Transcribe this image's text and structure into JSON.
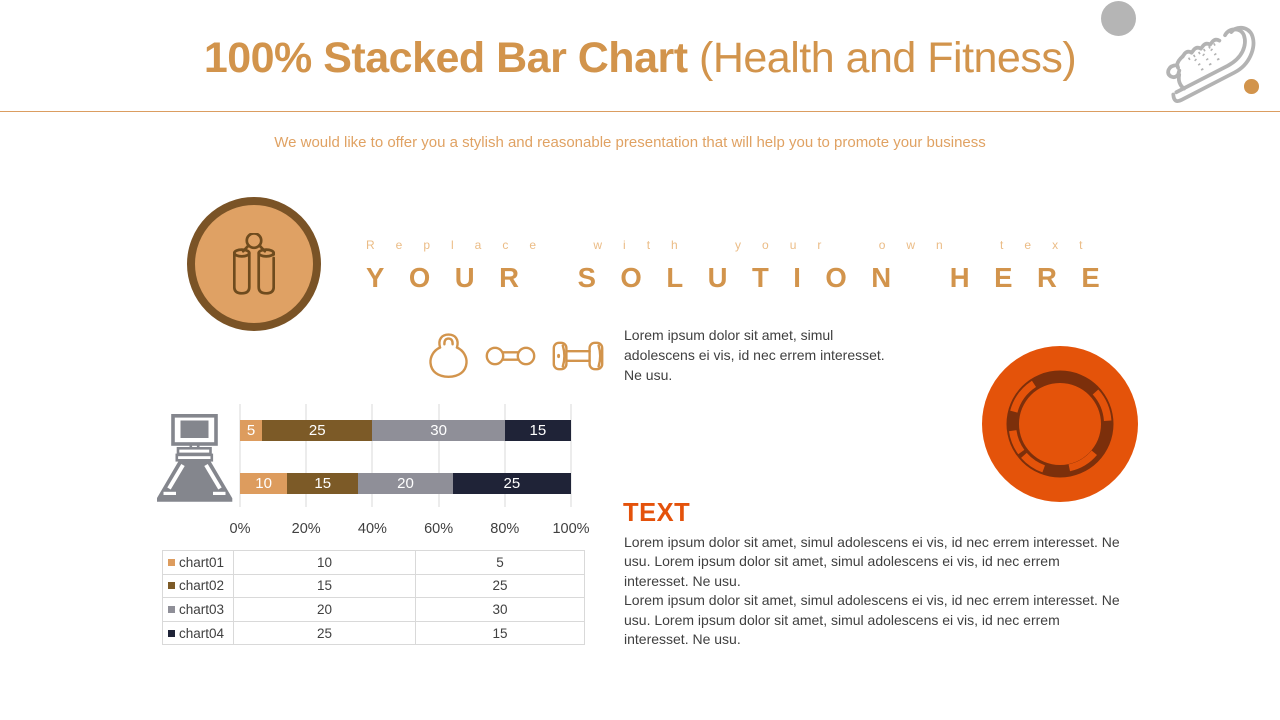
{
  "header": {
    "title_bold": "100% Stacked Bar Chart",
    "title_light": "(Health and Fitness)",
    "subtitle": "We would like to offer you a stylish and reasonable presentation that will help you to promote your business"
  },
  "solution_block": {
    "kicker": "Replace with your own text",
    "headline": "YOUR SOLUTION HERE",
    "description": "Lorem ipsum dolor sit amet, simul adolescens ei vis, id nec errem interesset. Ne usu."
  },
  "text_block": {
    "heading": "TEXT",
    "paragraph1": "Lorem ipsum dolor sit amet, simul adolescens ei vis, id nec errem interesset. Ne usu. Lorem ipsum dolor sit amet, simul adolescens ei vis, id nec errem interesset. Ne usu.",
    "paragraph2": "Lorem ipsum dolor sit amet, simul adolescens ei vis, id nec errem interesset. Ne usu. Lorem ipsum dolor sit amet, simul adolescens ei vis, id nec errem interesset. Ne usu."
  },
  "icons": {
    "top_right": [
      "gray-circle-shape",
      "sneaker-icon",
      "orange-dot-shape"
    ],
    "solution": "hand-grip-icon",
    "fitness_row": [
      "kettlebell-icon",
      "round-dumbbell-icon",
      "plate-dumbbell-icon"
    ],
    "chart_side": "weight-scale-icon",
    "right": "plate-ring-icon"
  },
  "colors": {
    "title_orange": "#D2944C",
    "divider_orange": "#DB9D61",
    "subtitle_orange": "#E0A263",
    "kicker_orange": "#EBBC86",
    "circle_fill": "#DFA164",
    "circle_border": "#7A5326",
    "red_orange": "#E4530A",
    "ring_dark": "#7C2F0B",
    "text_dark": "#3F3F3F",
    "icon_gray": "#84868D",
    "shape_gray": "#B5B5B5",
    "table_border": "#D9D9D9"
  },
  "chart_data": {
    "type": "bar",
    "variant": "100% stacked horizontal",
    "title": "100% Stacked Bar Chart (Health and Fitness)",
    "x_tick_labels": [
      "0%",
      "20%",
      "40%",
      "60%",
      "80%",
      "100%"
    ],
    "x_range_percent": [
      0,
      100
    ],
    "grid": true,
    "series": [
      {
        "name": "chart01",
        "color": "#DD9C5E",
        "values": [
          10,
          5
        ]
      },
      {
        "name": "chart02",
        "color": "#7C5A27",
        "values": [
          15,
          25
        ]
      },
      {
        "name": "chart03",
        "color": "#8F8F98",
        "values": [
          20,
          30
        ]
      },
      {
        "name": "chart04",
        "color": "#1F2337",
        "values": [
          25,
          15
        ]
      }
    ],
    "bars": {
      "top_bar_segments": [
        5,
        25,
        30,
        15
      ],
      "bottom_bar_segments": [
        10,
        15,
        20,
        25
      ]
    },
    "legend_position": "table-left-column"
  }
}
